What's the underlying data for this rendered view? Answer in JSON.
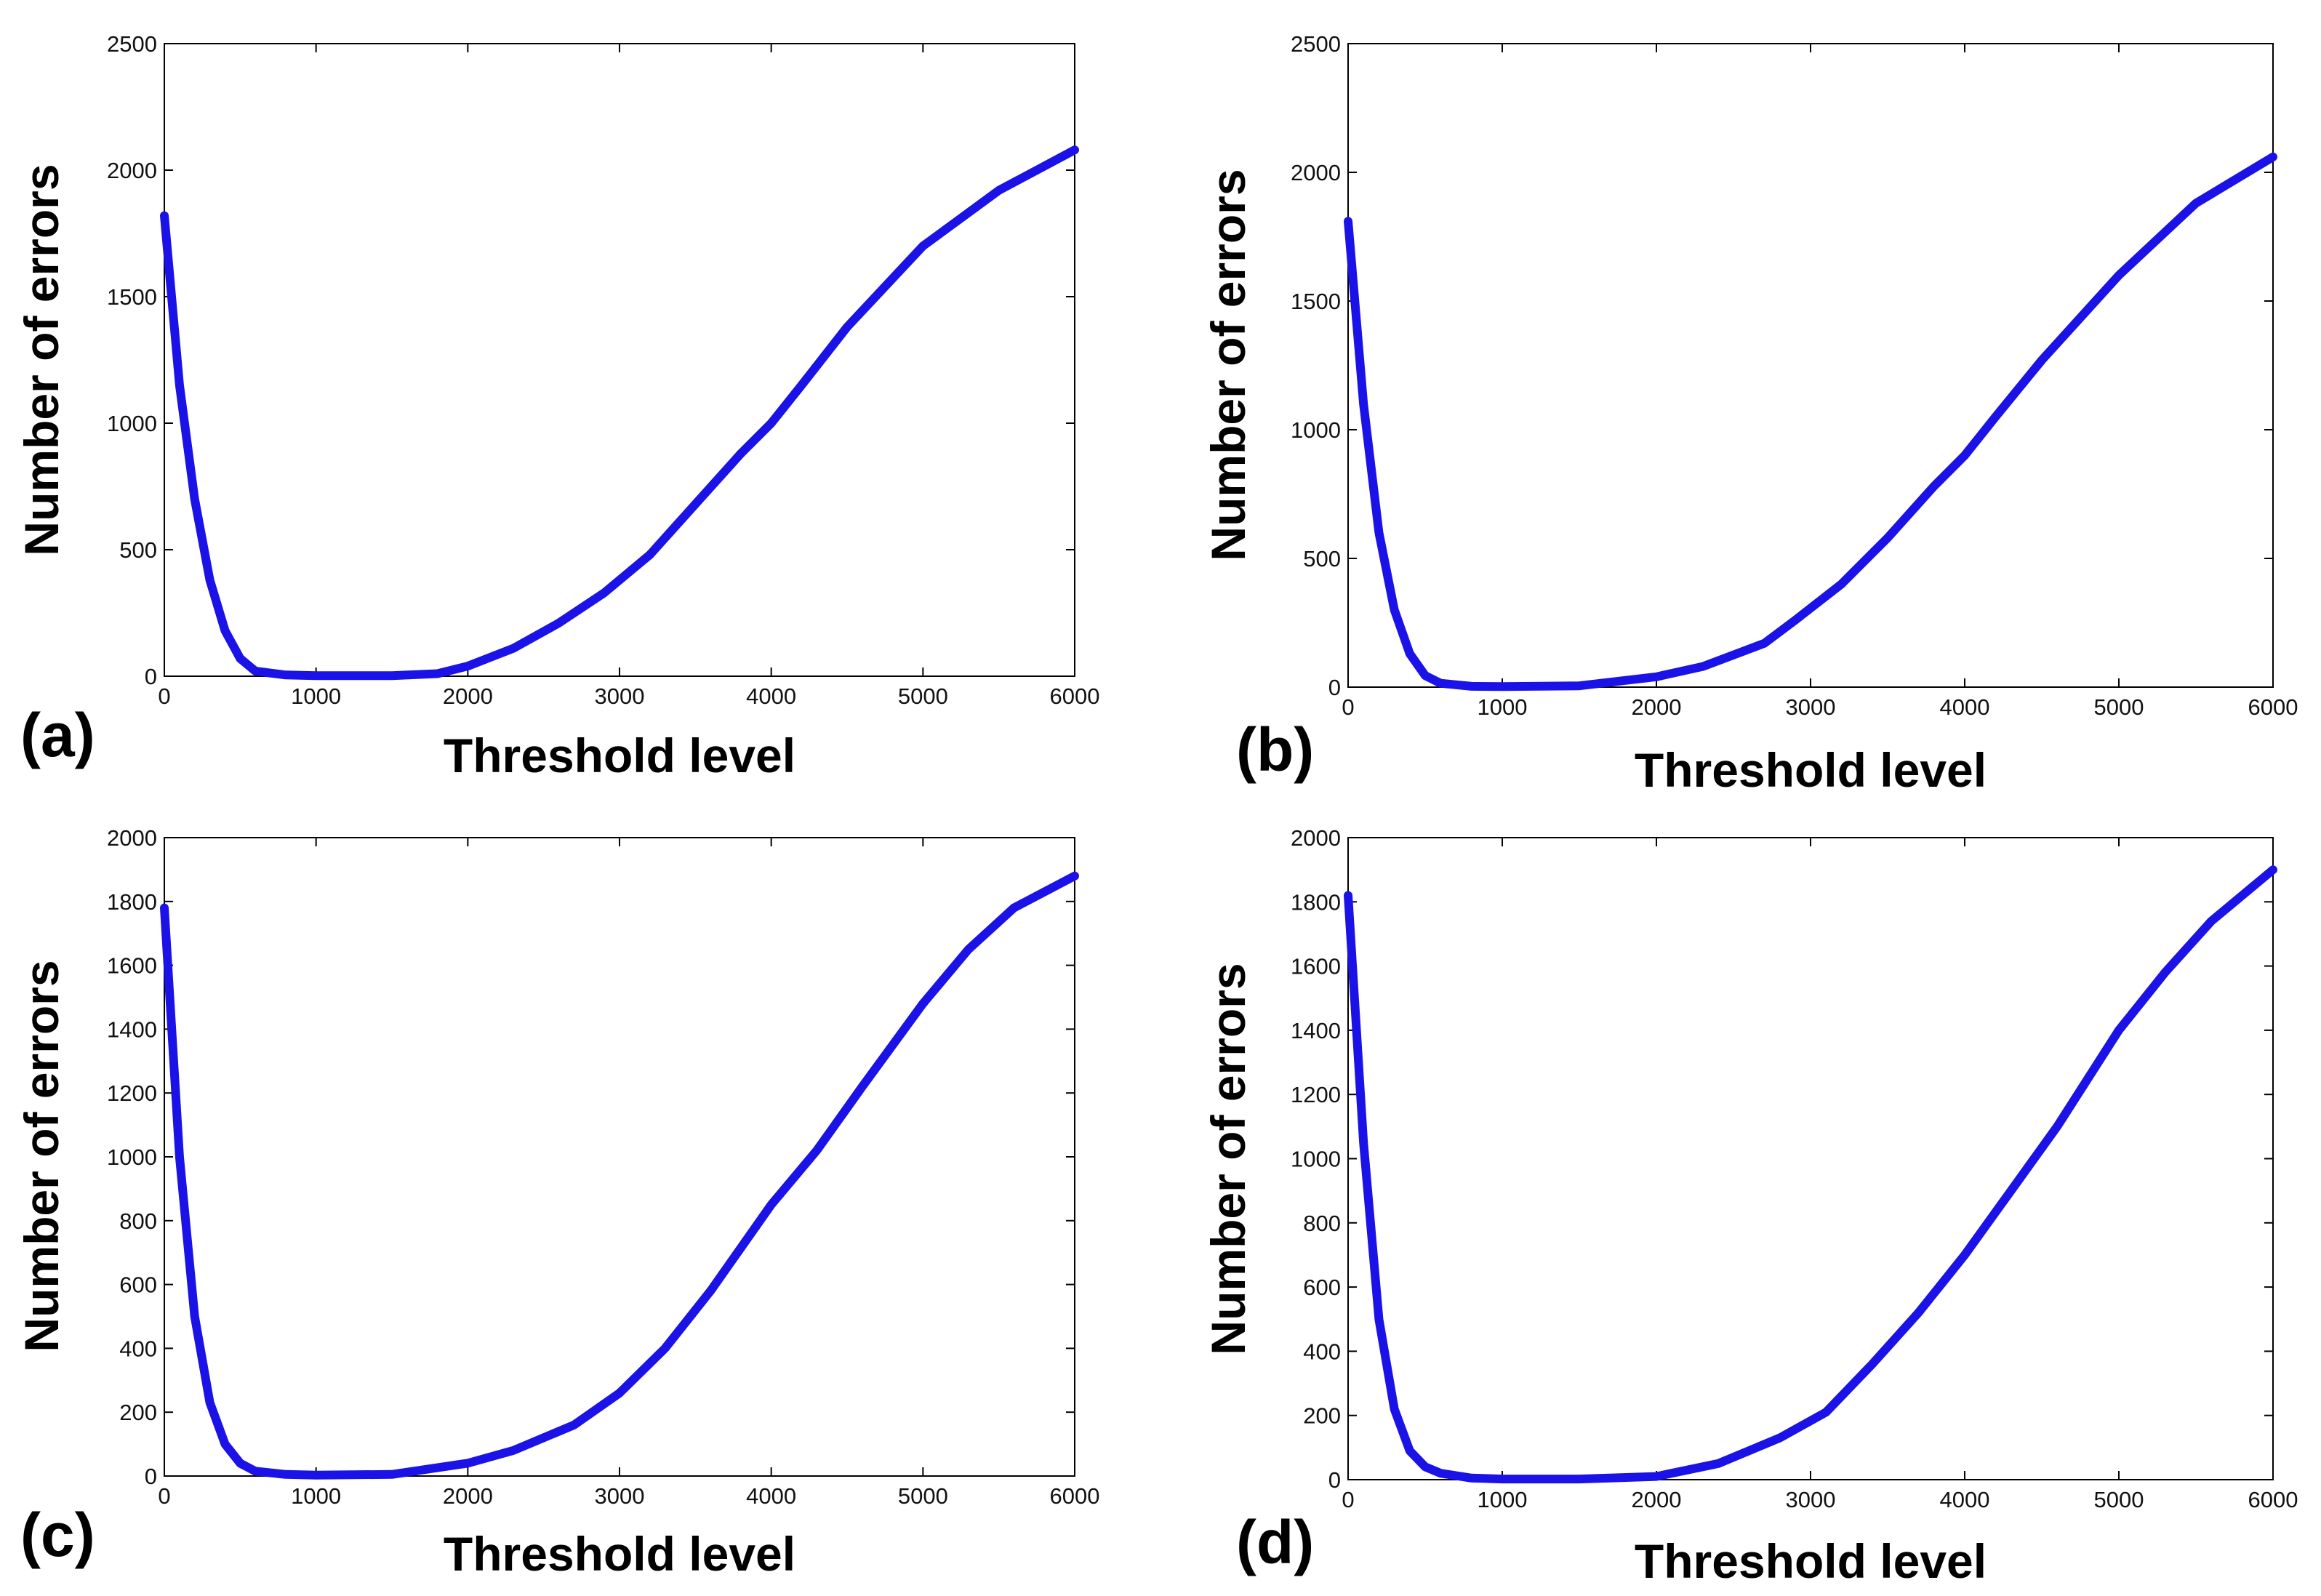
{
  "colors": {
    "line": "#1a12e6",
    "axis": "#000000",
    "background": "#ffffff"
  },
  "chart_data": [
    {
      "panel": "(a)",
      "type": "line",
      "xlabel": "Threshold level",
      "ylabel": "Number of errors",
      "xlim": [
        0,
        6000
      ],
      "ylim": [
        0,
        2500
      ],
      "xticks": [
        0,
        1000,
        2000,
        3000,
        4000,
        5000,
        6000
      ],
      "yticks": [
        0,
        500,
        1000,
        1500,
        2000,
        2500
      ],
      "series": [
        {
          "name": "errors",
          "x": [
            0,
            100,
            200,
            300,
            400,
            500,
            600,
            800,
            1000,
            1500,
            1800,
            2000,
            2300,
            2600,
            2900,
            3200,
            3500,
            3800,
            4000,
            4200,
            4500,
            5000,
            5500,
            6000
          ],
          "y": [
            1820,
            1150,
            700,
            380,
            180,
            70,
            20,
            5,
            2,
            2,
            10,
            40,
            110,
            210,
            330,
            480,
            680,
            880,
            1000,
            1150,
            1380,
            1700,
            1920,
            2080
          ]
        }
      ]
    },
    {
      "panel": "(b)",
      "type": "line",
      "xlabel": "Threshold level",
      "ylabel": "Number of errors",
      "xlim": [
        0,
        6000
      ],
      "ylim": [
        0,
        2500
      ],
      "xticks": [
        0,
        1000,
        2000,
        3000,
        4000,
        5000,
        6000
      ],
      "yticks": [
        0,
        500,
        1000,
        1500,
        2000,
        2500
      ],
      "series": [
        {
          "name": "errors",
          "x": [
            0,
            100,
            200,
            300,
            400,
            500,
            600,
            800,
            1000,
            1500,
            2000,
            2300,
            2700,
            2900,
            3200,
            3500,
            3800,
            4000,
            4200,
            4500,
            5000,
            5500,
            6000
          ],
          "y": [
            1810,
            1100,
            600,
            300,
            130,
            45,
            15,
            3,
            2,
            5,
            40,
            80,
            170,
            260,
            400,
            580,
            780,
            900,
            1050,
            1270,
            1600,
            1880,
            2060
          ]
        }
      ]
    },
    {
      "panel": "(c)",
      "type": "line",
      "xlabel": "Threshold level",
      "ylabel": "Number of errors",
      "xlim": [
        0,
        6000
      ],
      "ylim": [
        0,
        2000
      ],
      "xticks": [
        0,
        1000,
        2000,
        3000,
        4000,
        5000,
        6000
      ],
      "yticks": [
        0,
        200,
        400,
        600,
        800,
        1000,
        1200,
        1400,
        1600,
        1800,
        2000
      ],
      "series": [
        {
          "name": "errors",
          "x": [
            0,
            100,
            200,
            300,
            400,
            500,
            600,
            800,
            1000,
            1500,
            2000,
            2300,
            2700,
            3000,
            3300,
            3600,
            4000,
            4300,
            4600,
            5000,
            5300,
            5600,
            6000
          ],
          "y": [
            1780,
            1000,
            500,
            230,
            100,
            40,
            15,
            5,
            3,
            5,
            40,
            80,
            160,
            260,
            400,
            580,
            850,
            1020,
            1220,
            1480,
            1650,
            1780,
            1880
          ]
        }
      ]
    },
    {
      "panel": "(d)",
      "type": "line",
      "xlabel": "Threshold level",
      "ylabel": "Number of errors",
      "xlim": [
        0,
        6000
      ],
      "ylim": [
        0,
        2000
      ],
      "xticks": [
        0,
        1000,
        2000,
        3000,
        4000,
        5000,
        6000
      ],
      "yticks": [
        0,
        200,
        400,
        600,
        800,
        1000,
        1200,
        1400,
        1600,
        1800,
        2000
      ],
      "series": [
        {
          "name": "errors",
          "x": [
            0,
            100,
            200,
            300,
            400,
            500,
            600,
            800,
            1000,
            1500,
            2000,
            2400,
            2800,
            3100,
            3400,
            3700,
            4000,
            4300,
            4600,
            5000,
            5300,
            5600,
            6000
          ],
          "y": [
            1820,
            1050,
            500,
            220,
            90,
            40,
            20,
            5,
            2,
            2,
            10,
            50,
            130,
            210,
            360,
            520,
            700,
            900,
            1100,
            1400,
            1580,
            1740,
            1900
          ]
        }
      ]
    }
  ]
}
